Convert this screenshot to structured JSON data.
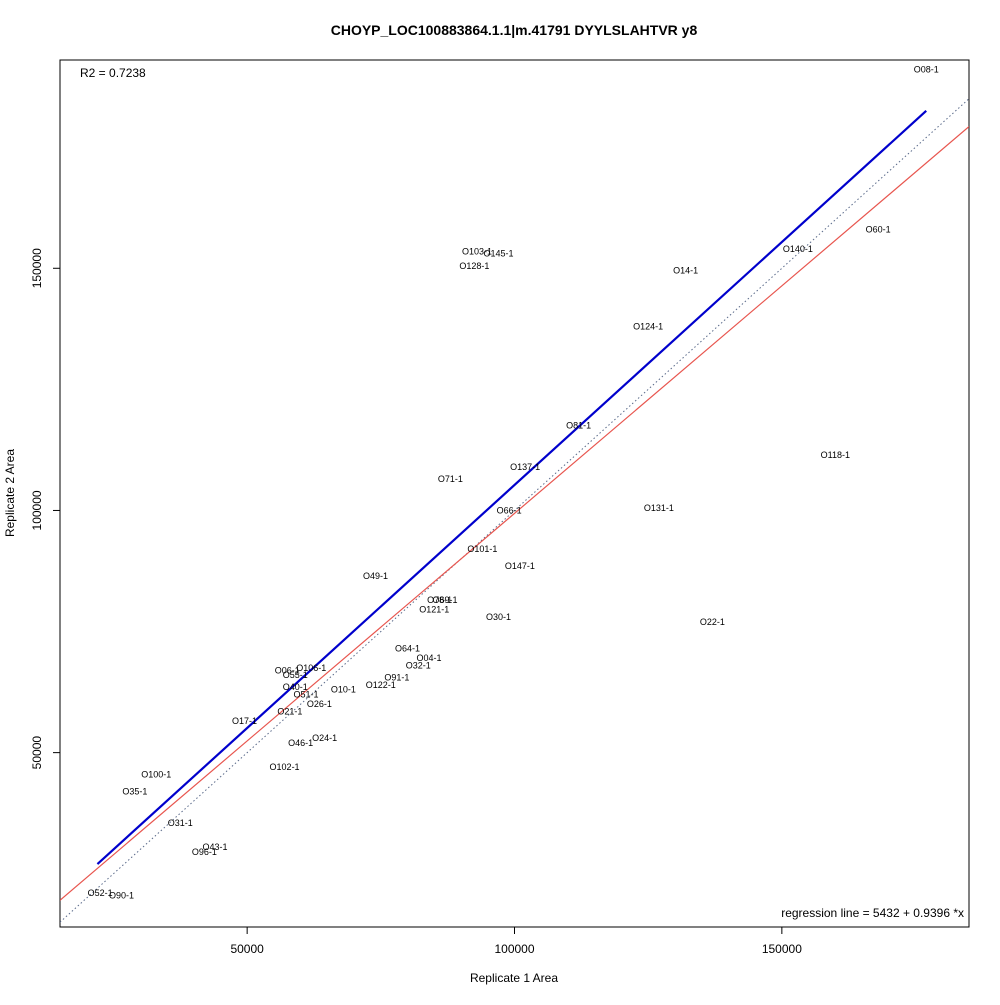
{
  "chart_data": {
    "type": "scatter",
    "title": "CHOYP_LOC100883864.1.1|m.41791 DYYLSLAHTVR y8",
    "xlabel": "Replicate 1 Area",
    "ylabel": "Replicate 2 Area",
    "xlim": [
      15000,
      185000
    ],
    "ylim": [
      14000,
      193000
    ],
    "x_ticks": [
      50000,
      100000,
      150000
    ],
    "y_ticks": [
      50000,
      100000,
      150000
    ],
    "x_tick_labels": [
      "50000",
      "100000",
      "150000"
    ],
    "y_tick_labels": [
      "50000",
      "100000",
      "150000"
    ],
    "r2_text": "R2 = 0.7238",
    "regression_text": "regression line = 5432 + 0.9396 *x",
    "grid": false,
    "legend": "none",
    "colors": {
      "blue_line": "#0000cc",
      "red_line": "#e8554e",
      "dotted_line": "#5a6a8a"
    },
    "lines": {
      "blue": {
        "x": [
          22000,
          177000
        ],
        "y": [
          27000,
          182500
        ],
        "style": "solid"
      },
      "red": {
        "intercept": 5432,
        "slope": 0.9396,
        "style": "solid"
      },
      "identity": {
        "intercept": 0,
        "slope": 1,
        "style": "dotted"
      }
    },
    "points": [
      {
        "label": "O08-1",
        "x": 177000,
        "y": 191000
      },
      {
        "label": "O60-1",
        "x": 168000,
        "y": 158000
      },
      {
        "label": "O140-1",
        "x": 153000,
        "y": 154000
      },
      {
        "label": "O14-1",
        "x": 132000,
        "y": 149500
      },
      {
        "label": "O124-1",
        "x": 125000,
        "y": 138000
      },
      {
        "label": "O118-1",
        "x": 160000,
        "y": 111500
      },
      {
        "label": "O131-1",
        "x": 127000,
        "y": 100500
      },
      {
        "label": "O22-1",
        "x": 137000,
        "y": 77000
      },
      {
        "label": "O81-1",
        "x": 112000,
        "y": 117500
      },
      {
        "label": "O137-1",
        "x": 102000,
        "y": 109000
      },
      {
        "label": "O103-1",
        "x": 93000,
        "y": 153500
      },
      {
        "label": "O145-1",
        "x": 97000,
        "y": 153000
      },
      {
        "label": "O128-1",
        "x": 92500,
        "y": 150500
      },
      {
        "label": "O71-1",
        "x": 88000,
        "y": 106500
      },
      {
        "label": "O66-1",
        "x": 99000,
        "y": 100000
      },
      {
        "label": "O101-1",
        "x": 94000,
        "y": 92000
      },
      {
        "label": "O147-1",
        "x": 101000,
        "y": 88500
      },
      {
        "label": "O30-1",
        "x": 97000,
        "y": 78000
      },
      {
        "label": "O49-1",
        "x": 74000,
        "y": 86500
      },
      {
        "label": "O78-1",
        "x": 86000,
        "y": 81500
      },
      {
        "label": "O69-1",
        "x": 87000,
        "y": 81500
      },
      {
        "label": "O121-1",
        "x": 85000,
        "y": 79500
      },
      {
        "label": "O64-1",
        "x": 80000,
        "y": 71500
      },
      {
        "label": "O04-1",
        "x": 84000,
        "y": 69500
      },
      {
        "label": "O32-1",
        "x": 82000,
        "y": 68000
      },
      {
        "label": "O91-1",
        "x": 78000,
        "y": 65500
      },
      {
        "label": "O122-1",
        "x": 75000,
        "y": 64000
      },
      {
        "label": "O10-1",
        "x": 68000,
        "y": 63000
      },
      {
        "label": "O06-1",
        "x": 57500,
        "y": 67000
      },
      {
        "label": "O106-1",
        "x": 62000,
        "y": 67500
      },
      {
        "label": "O55-1",
        "x": 59000,
        "y": 66000
      },
      {
        "label": "O40-1",
        "x": 59000,
        "y": 63500
      },
      {
        "label": "O51-1",
        "x": 61000,
        "y": 62000
      },
      {
        "label": "O26-1",
        "x": 63500,
        "y": 60000
      },
      {
        "label": "O21-1",
        "x": 58000,
        "y": 58500
      },
      {
        "label": "O17-1",
        "x": 49500,
        "y": 56500
      },
      {
        "label": "O24-1",
        "x": 64500,
        "y": 53000
      },
      {
        "label": "O46-1",
        "x": 60000,
        "y": 52000
      },
      {
        "label": "O102-1",
        "x": 57000,
        "y": 47000
      },
      {
        "label": "O100-1",
        "x": 33000,
        "y": 45500
      },
      {
        "label": "O35-1",
        "x": 29000,
        "y": 42000
      },
      {
        "label": "O31-1",
        "x": 37500,
        "y": 35500
      },
      {
        "label": "O43-1",
        "x": 44000,
        "y": 30500
      },
      {
        "label": "O96-1",
        "x": 42000,
        "y": 29500
      },
      {
        "label": "O52-1",
        "x": 22500,
        "y": 21000
      },
      {
        "label": "O90-1",
        "x": 26500,
        "y": 20500
      }
    ]
  }
}
